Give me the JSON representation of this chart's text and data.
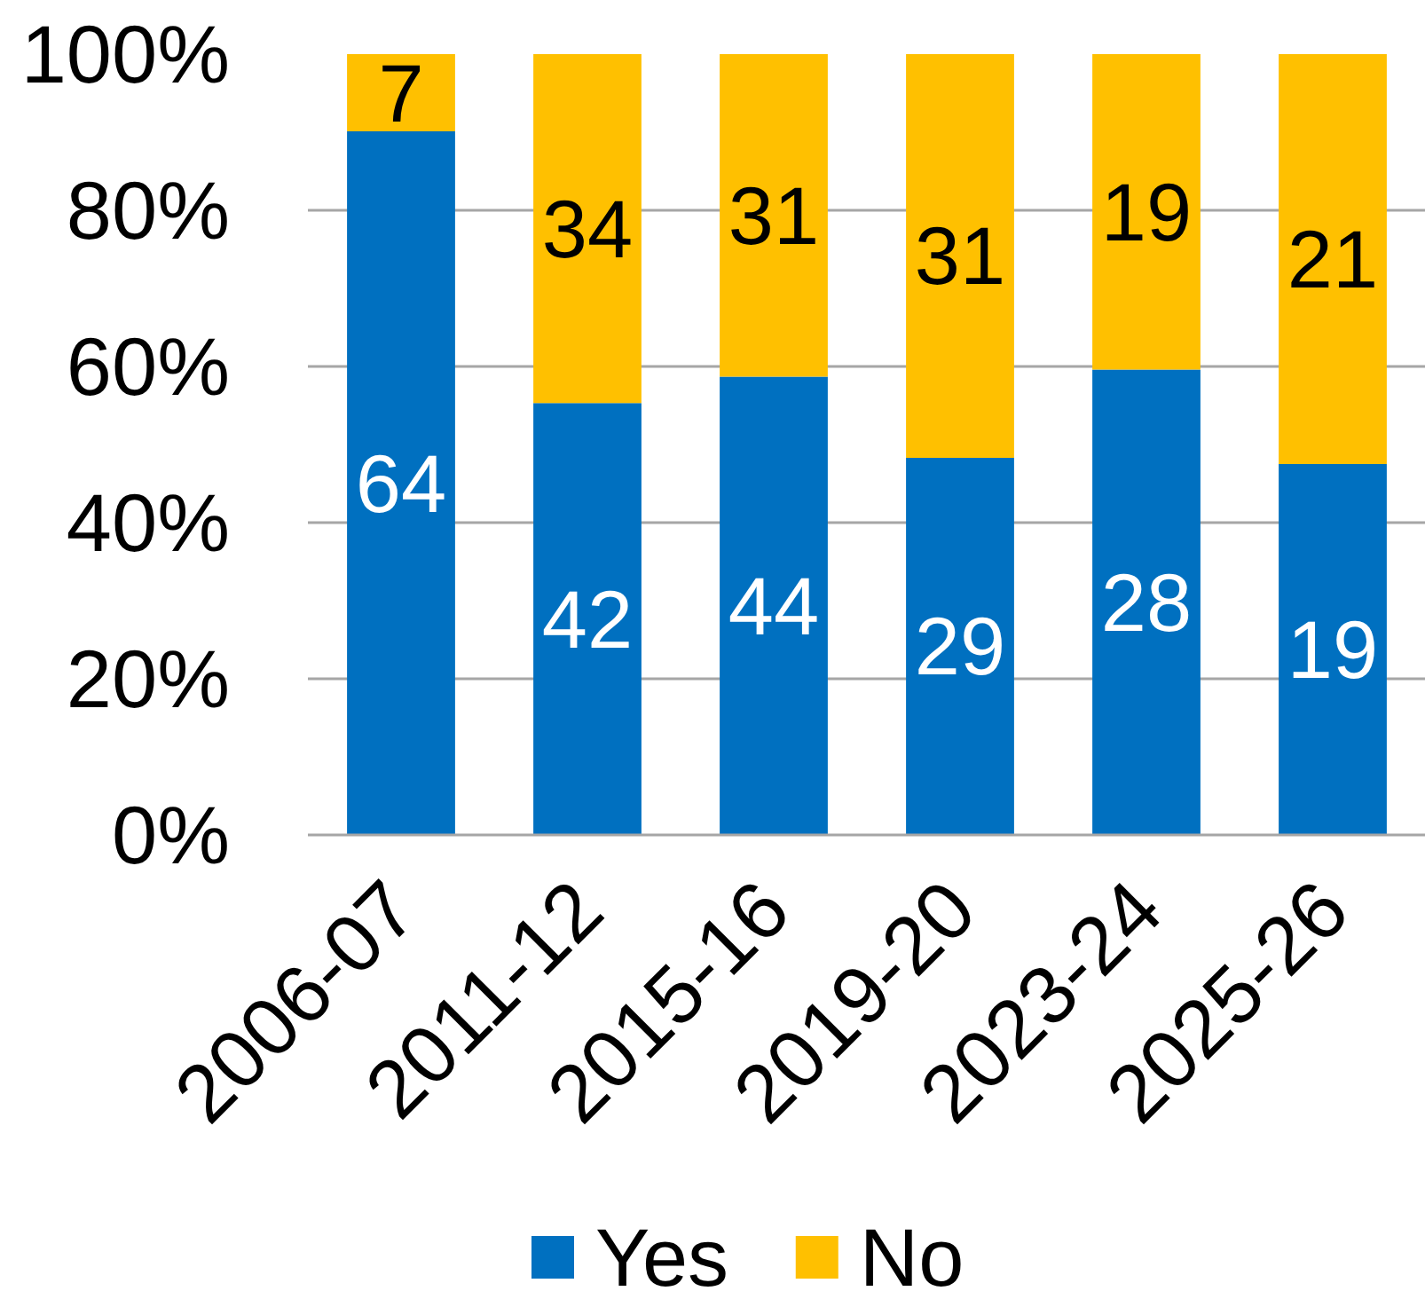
{
  "chart_data": {
    "type": "bar",
    "stacked": true,
    "categories": [
      "2006-07",
      "2011-12",
      "2015-16",
      "2019-20",
      "2023-24",
      "2025-26"
    ],
    "series": [
      {
        "name": "Yes",
        "color": "#0070c0",
        "values": [
          90.1,
          55.3,
          58.7,
          48.3,
          59.6,
          47.5
        ]
      },
      {
        "name": "No",
        "color": "#ffc000",
        "values": [
          9.9,
          44.7,
          41.3,
          51.7,
          40.4,
          52.5
        ]
      }
    ],
    "annotations": [
      "64",
      "42",
      "44",
      "29",
      "28",
      "19",
      "7",
      "34",
      "31",
      "31",
      "19",
      "21"
    ],
    "ylim": [
      0,
      100
    ],
    "yticks": [
      {
        "value": 0,
        "label": "0%"
      },
      {
        "value": 20,
        "label": "20%"
      },
      {
        "value": 40,
        "label": "40%"
      },
      {
        "value": 60,
        "label": "60%"
      },
      {
        "value": 80,
        "label": "80%"
      },
      {
        "value": 100,
        "label": "100%"
      }
    ],
    "grid": "y",
    "legend": "bottom"
  }
}
